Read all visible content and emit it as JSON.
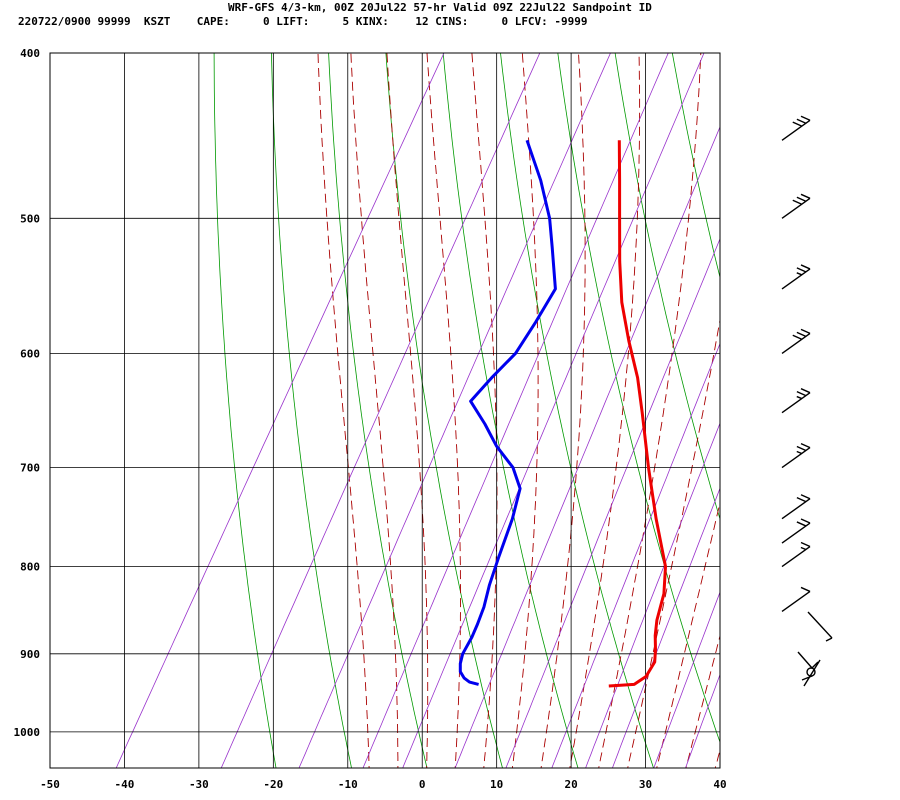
{
  "header": {
    "title": "WRF-GFS 4/3-km, 00Z 20Jul22 57-hr Valid 09Z 22Jul22 Sandpoint ID",
    "info": "220722/0900 99999  KSZT    CAPE:     0 LIFT:     5 KINX:    12 CINS:     0 LFCV: -9999"
  },
  "colors": {
    "temperature": "#ee0000",
    "dewpoint": "#0000ee",
    "dry_adiabat": "#009900",
    "moist_adiabat": "#aa0000",
    "mixing_ratio": "#9933cc",
    "grid": "#000000"
  },
  "chart_data": {
    "type": "line",
    "title": "",
    "xlabel": "",
    "ylabel": "",
    "xlim": [
      -50,
      40
    ],
    "ylim": [
      1050,
      400
    ],
    "y_scale": "log",
    "grid": true,
    "x_ticks": [
      -50,
      -40,
      -30,
      -20,
      -10,
      0,
      10,
      20,
      30,
      40
    ],
    "y_ticks": [
      400,
      500,
      600,
      700,
      800,
      900,
      1000
    ],
    "series": [
      {
        "key": "temperature",
        "points": [
          {
            "p": 940,
            "t": 19.0
          },
          {
            "p": 938,
            "t": 22.3
          },
          {
            "p": 928,
            "t": 23.3
          },
          {
            "p": 910,
            "t": 23.4
          },
          {
            "p": 895,
            "t": 22.6
          },
          {
            "p": 878,
            "t": 21.5
          },
          {
            "p": 860,
            "t": 20.6
          },
          {
            "p": 830,
            "t": 19.6
          },
          {
            "p": 800,
            "t": 17.8
          },
          {
            "p": 750,
            "t": 13.0
          },
          {
            "p": 700,
            "t": 8.2
          },
          {
            "p": 650,
            "t": 3.3
          },
          {
            "p": 620,
            "t": 0.1
          },
          {
            "p": 590,
            "t": -3.8
          },
          {
            "p": 560,
            "t": -7.6
          },
          {
            "p": 530,
            "t": -10.9
          },
          {
            "p": 500,
            "t": -14.1
          },
          {
            "p": 475,
            "t": -16.9
          },
          {
            "p": 450,
            "t": -19.9
          }
        ]
      },
      {
        "key": "dewpoint",
        "points": [
          {
            "p": 938,
            "t": 1.4
          },
          {
            "p": 935,
            "t": 0.0
          },
          {
            "p": 930,
            "t": -1.0
          },
          {
            "p": 922,
            "t": -2.0
          },
          {
            "p": 912,
            "t": -2.6
          },
          {
            "p": 900,
            "t": -3.0
          },
          {
            "p": 880,
            "t": -3.0
          },
          {
            "p": 865,
            "t": -3.2
          },
          {
            "p": 845,
            "t": -3.6
          },
          {
            "p": 820,
            "t": -4.5
          },
          {
            "p": 790,
            "t": -5.3
          },
          {
            "p": 750,
            "t": -6.3
          },
          {
            "p": 720,
            "t": -7.5
          },
          {
            "p": 700,
            "t": -10.0
          },
          {
            "p": 680,
            "t": -13.8
          },
          {
            "p": 660,
            "t": -17.0
          },
          {
            "p": 640,
            "t": -20.6
          },
          {
            "p": 620,
            "t": -19.5
          },
          {
            "p": 600,
            "t": -18.1
          },
          {
            "p": 575,
            "t": -17.7
          },
          {
            "p": 550,
            "t": -17.5
          },
          {
            "p": 520,
            "t": -21.0
          },
          {
            "p": 500,
            "t": -23.5
          },
          {
            "p": 475,
            "t": -27.5
          },
          {
            "p": 450,
            "t": -32.3
          }
        ]
      }
    ],
    "wind_barbs": [
      {
        "p": 450,
        "speed_kt": 30
      },
      {
        "p": 500,
        "speed_kt": 30
      },
      {
        "p": 550,
        "speed_kt": 25
      },
      {
        "p": 600,
        "speed_kt": 30
      },
      {
        "p": 650,
        "speed_kt": 25
      },
      {
        "p": 700,
        "speed_kt": 25
      },
      {
        "p": 750,
        "speed_kt": 20
      },
      {
        "p": 775,
        "speed_kt": 20
      },
      {
        "p": 800,
        "speed_kt": 15
      },
      {
        "p": 850,
        "speed_kt": 10
      }
    ]
  }
}
